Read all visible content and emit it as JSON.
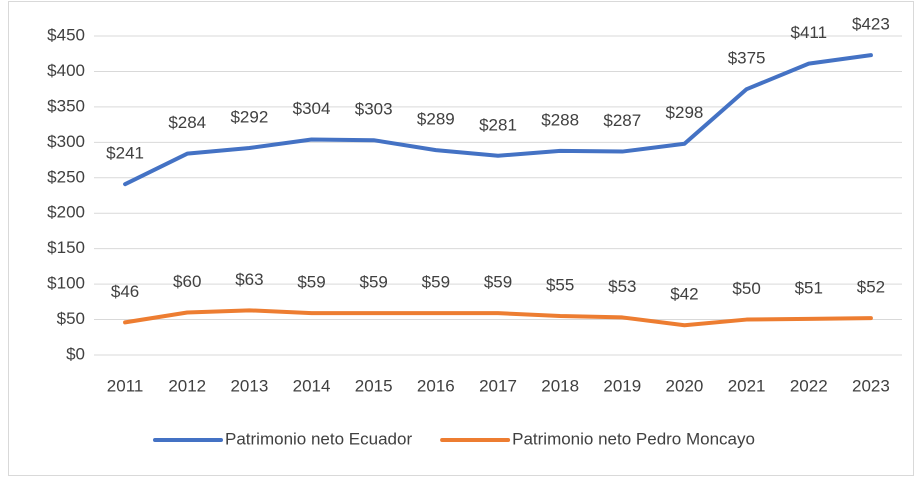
{
  "chart_data": {
    "type": "line",
    "categories": [
      "2011",
      "2012",
      "2013",
      "2014",
      "2015",
      "2016",
      "2017",
      "2018",
      "2019",
      "2020",
      "2021",
      "2022",
      "2023"
    ],
    "series": [
      {
        "name": "Patrimonio neto Ecuador",
        "color": "#4472c4",
        "values": [
          241,
          284,
          292,
          304,
          303,
          289,
          281,
          288,
          287,
          298,
          375,
          411,
          423
        ],
        "value_labels": [
          "$241",
          "$284",
          "$292",
          "$304",
          "$303",
          "$289",
          "$281",
          "$288",
          "$287",
          "$298",
          "$375",
          "$411",
          "$423"
        ]
      },
      {
        "name": "Patrimonio neto Pedro Moncayo",
        "color": "#ed7d31",
        "values": [
          46,
          60,
          63,
          59,
          59,
          59,
          59,
          55,
          53,
          42,
          50,
          51,
          52
        ],
        "value_labels": [
          "$46",
          "$60",
          "$63",
          "$59",
          "$59",
          "$59",
          "$59",
          "$55",
          "$53",
          "$42",
          "$50",
          "$51",
          "$52"
        ]
      }
    ],
    "ylim": [
      0,
      450
    ],
    "yticks": [
      {
        "value": 0,
        "label": "$0"
      },
      {
        "value": 50,
        "label": "$50"
      },
      {
        "value": 100,
        "label": "$100"
      },
      {
        "value": 150,
        "label": "$150"
      },
      {
        "value": 200,
        "label": "$200"
      },
      {
        "value": 250,
        "label": "$250"
      },
      {
        "value": 300,
        "label": "$300"
      },
      {
        "value": 350,
        "label": "$350"
      },
      {
        "value": 400,
        "label": "$400"
      },
      {
        "value": 450,
        "label": "$450"
      }
    ],
    "grid": true,
    "legend": "bottom"
  }
}
